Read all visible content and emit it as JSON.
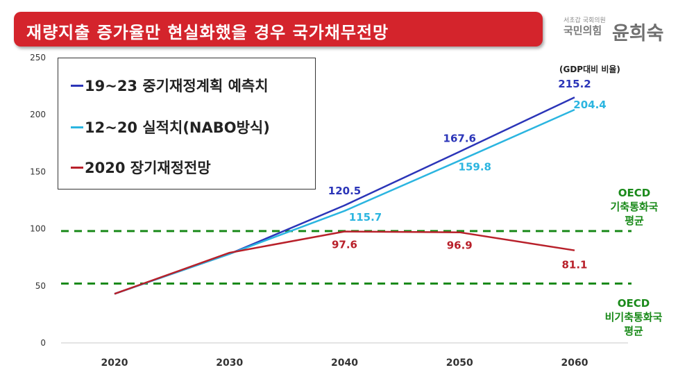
{
  "header": {
    "title": "재량지출 증가율만 현실화했을 경우 국가채무전망",
    "logo_small": "서초갑 국회의원",
    "logo_party": "국민의힘",
    "logo_name": "윤희숙"
  },
  "unit_note": "(GDP대비 비율)",
  "annotations": {
    "oecd_reserve": [
      "OECD",
      "기축통화국",
      "평균"
    ],
    "oecd_nonreserve": [
      "OECD",
      "비기축통화국",
      "평균"
    ]
  },
  "colors": {
    "title_bg": "#d4242c",
    "series1": "#2b35b8",
    "series2": "#2bb5e0",
    "series3": "#b8202a",
    "reference": "#1a8a1a"
  },
  "chart_data": {
    "type": "line",
    "title": "",
    "xlabel": "",
    "ylabel": "",
    "x_ticks": [
      2020,
      2030,
      2040,
      2050,
      2060
    ],
    "y_ticks": [
      0,
      50,
      100,
      150,
      200,
      250
    ],
    "xlim": [
      2020,
      2060
    ],
    "ylim": [
      0,
      250
    ],
    "grid": false,
    "legend_position": "top-left",
    "series": [
      {
        "name": "19~23 중기재정계획 예측치",
        "color": "#2b35b8",
        "points": [
          [
            2020,
            43
          ],
          [
            2030,
            78
          ],
          [
            2040,
            120.5
          ],
          [
            2050,
            167.6
          ],
          [
            2060,
            215.2
          ]
        ],
        "labels": [
          "",
          "",
          "120.5",
          "167.6",
          "215.2"
        ]
      },
      {
        "name": "12~20 실적치(NABO방식)",
        "color": "#2bb5e0",
        "points": [
          [
            2020,
            43
          ],
          [
            2030,
            78
          ],
          [
            2040,
            115.7
          ],
          [
            2050,
            159.8
          ],
          [
            2060,
            204.4
          ]
        ],
        "labels": [
          "",
          "",
          "115.7",
          "159.8",
          "204.4"
        ]
      },
      {
        "name": "2020 장기재정전망",
        "color": "#b8202a",
        "points": [
          [
            2020,
            43
          ],
          [
            2030,
            79
          ],
          [
            2040,
            97.6
          ],
          [
            2050,
            96.9
          ],
          [
            2060,
            81.1
          ]
        ],
        "labels": [
          "",
          "",
          "97.6",
          "96.9",
          "81.1"
        ]
      }
    ],
    "reference_lines": [
      {
        "value": 98,
        "color": "#1a8a1a",
        "style": "dashed"
      },
      {
        "value": 52,
        "color": "#1a8a1a",
        "style": "dashed"
      }
    ]
  }
}
